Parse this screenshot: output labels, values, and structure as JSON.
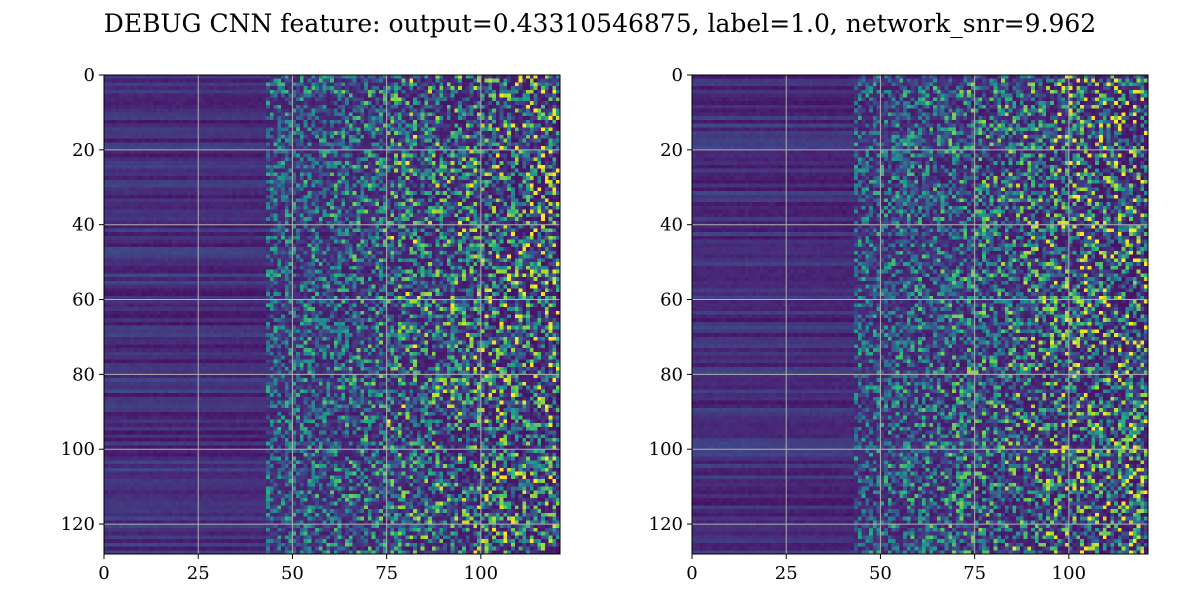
{
  "figure": {
    "title": "DEBUG CNN feature: output=0.43310546875, label=1.0, network_snr=9.962"
  },
  "colormap": {
    "name": "viridis",
    "stops": [
      "#440154",
      "#482878",
      "#3e4989",
      "#31688e",
      "#26828e",
      "#1f9e89",
      "#35b779",
      "#6ece58",
      "#b5de2b",
      "#fde725"
    ]
  },
  "chart_data": [
    {
      "type": "heatmap",
      "title": "",
      "xlabel": "",
      "ylabel": "",
      "xlim": [
        0,
        121
      ],
      "ylim": [
        128,
        0
      ],
      "y_inverted": true,
      "grid": true,
      "grid_color": "#b0b0b0",
      "xticks": [
        0,
        25,
        50,
        75,
        100
      ],
      "yticks": [
        0,
        20,
        40,
        60,
        80,
        100,
        120
      ],
      "shape": [
        128,
        121
      ],
      "pattern": "dark uniform left region (cols 0-40), increasing sparse bright speckle toward the right (cols 60-121)",
      "bright_spots": [
        [
          81,
          1
        ],
        [
          82,
          16
        ],
        [
          80,
          23
        ],
        [
          94,
          39
        ],
        [
          76,
          43
        ],
        [
          82,
          44
        ],
        [
          80,
          58
        ],
        [
          83,
          59
        ],
        [
          92,
          61
        ],
        [
          82,
          72
        ],
        [
          79,
          88
        ],
        [
          94,
          102
        ],
        [
          114,
          108
        ],
        [
          105,
          19
        ],
        [
          75,
          92
        ]
      ]
    },
    {
      "type": "heatmap",
      "title": "",
      "xlabel": "",
      "ylabel": "",
      "xlim": [
        0,
        121
      ],
      "ylim": [
        128,
        0
      ],
      "y_inverted": true,
      "grid": true,
      "grid_color": "#b0b0b0",
      "xticks": [
        0,
        25,
        50,
        75,
        100
      ],
      "yticks": [
        0,
        20,
        40,
        60,
        80,
        100,
        120
      ],
      "shape": [
        128,
        121
      ],
      "pattern": "dark uniform left region (cols 0-40), increasing sparse bright speckle toward the right (cols 60-121)",
      "bright_spots": [
        [
          99,
          0
        ],
        [
          88,
          16
        ],
        [
          108,
          17
        ],
        [
          96,
          55
        ],
        [
          101,
          92
        ],
        [
          117,
          94
        ],
        [
          85,
          126
        ],
        [
          98,
          40
        ],
        [
          115,
          35
        ],
        [
          93,
          60
        ],
        [
          110,
          114
        ]
      ]
    }
  ]
}
